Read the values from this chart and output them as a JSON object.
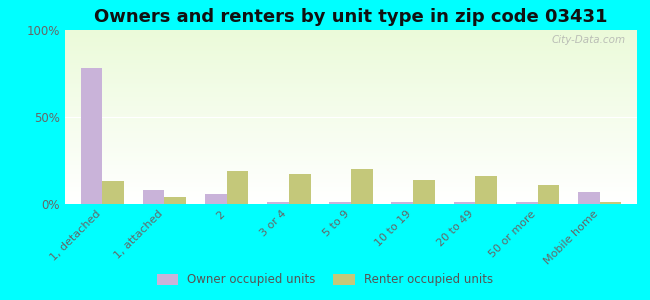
{
  "title": "Owners and renters by unit type in zip code 03431",
  "categories": [
    "1, detached",
    "1, attached",
    "2",
    "3 or 4",
    "5 to 9",
    "10 to 19",
    "20 to 49",
    "50 or more",
    "Mobile home"
  ],
  "owner_values": [
    78,
    8,
    6,
    1,
    1,
    1,
    1,
    1,
    7
  ],
  "renter_values": [
    13,
    4,
    19,
    17,
    20,
    14,
    16,
    11,
    1
  ],
  "owner_color": "#c9b3d9",
  "renter_color": "#c4c87a",
  "outer_bg": "#00ffff",
  "ylim": [
    0,
    100
  ],
  "yticks": [
    0,
    50,
    100
  ],
  "ytick_labels": [
    "0%",
    "50%",
    "100%"
  ],
  "bar_width": 0.35,
  "title_fontsize": 13,
  "watermark": "City-Data.com"
}
